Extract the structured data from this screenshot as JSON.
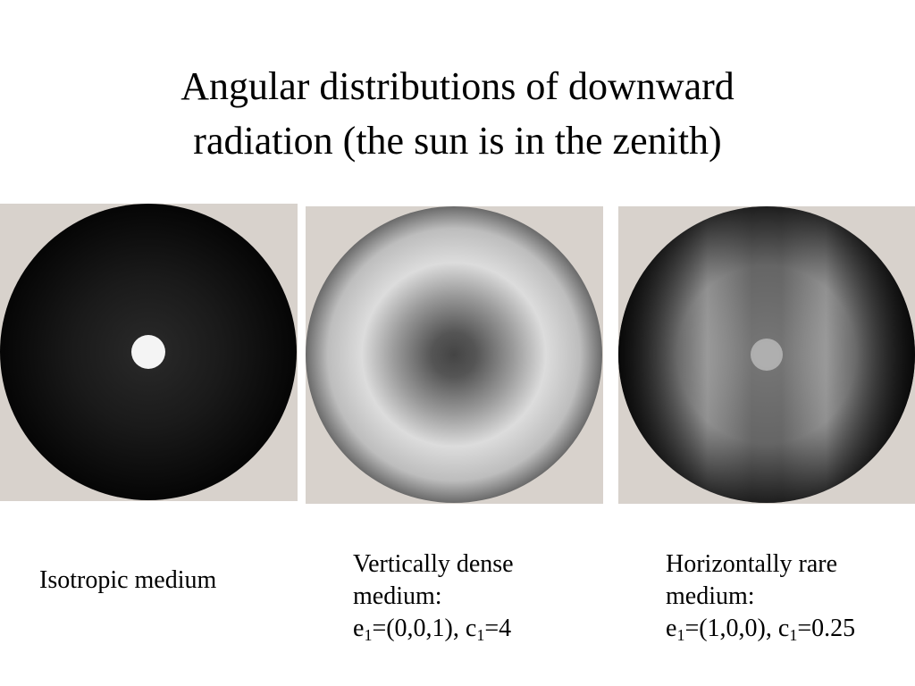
{
  "title": [
    "Angular distributions of downward",
    "radiation (the sun is in the zenith)"
  ],
  "panels": [
    {
      "caption": [
        "Isotropic medium"
      ]
    },
    {
      "caption": [
        "Vertically dense",
        "medium:"
      ],
      "formula": [
        "e",
        "1",
        "=(0,0,1), c",
        "1",
        "=4"
      ]
    },
    {
      "caption": [
        "Horizontally rare",
        "medium:"
      ],
      "formula": [
        "e",
        "1",
        "=(1,0,0), c",
        "1",
        "=0.25"
      ]
    }
  ]
}
